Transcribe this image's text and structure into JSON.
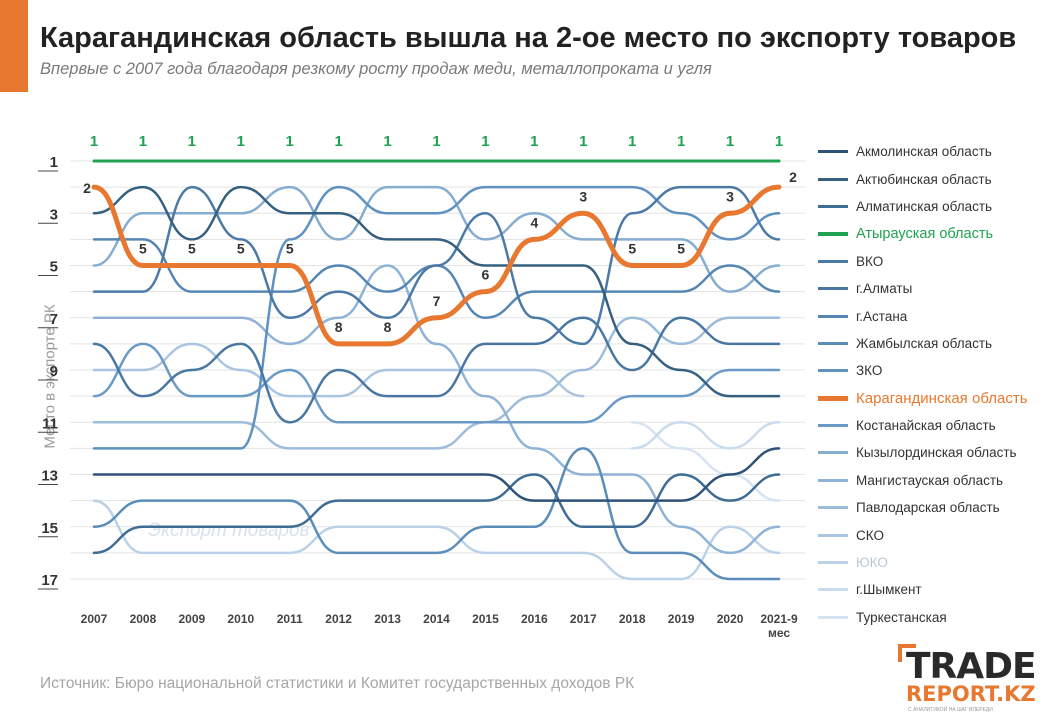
{
  "header": {
    "title": "Карагандинская область вышла на 2-ое место по экспорту товаров",
    "subtitle": "Впервые с 2007 года благодаря резкому росту продаж меди, металлопроката и угля"
  },
  "source": "Источник: Бюро национальной статистики и Комитет государственных доходов РК",
  "logo": {
    "line1": "TRADE",
    "line2": "REPORT.KZ",
    "tagline": "С АНАЛИТИКОЙ НА ШАГ ВПЕРЕДИ"
  },
  "chart_data": {
    "type": "line",
    "title": "Карагандинская область вышла на 2-ое место по экспорту товаров",
    "subtitle": "Впервые с 2007 года благодаря резкому росту продаж меди, металлопроката и угля",
    "xlabel": "",
    "ylabel": "Место в экспорте РК",
    "x": [
      "2007",
      "2008",
      "2009",
      "2010",
      "2011",
      "2012",
      "2013",
      "2014",
      "2015",
      "2016",
      "2017",
      "2018",
      "2019",
      "2020",
      "2021-9 мес"
    ],
    "y_ticks": [
      1,
      3,
      5,
      7,
      9,
      11,
      13,
      15,
      17
    ],
    "ylim": [
      17,
      1
    ],
    "y_inverted": true,
    "grid": true,
    "legend_position": "right",
    "watermark": "Экспорт товаров",
    "series": [
      {
        "name": "Акмолинская область",
        "color": "#2e5277",
        "width": 2.5,
        "values": [
          13,
          13,
          13,
          13,
          13,
          13,
          13,
          13,
          13,
          14,
          14,
          14,
          14,
          13,
          12
        ]
      },
      {
        "name": "Актюбинская область",
        "color": "#36607f",
        "width": 2.5,
        "values": [
          3,
          2,
          4,
          2,
          3,
          3,
          4,
          4,
          5,
          5,
          5,
          8,
          9,
          10,
          10
        ]
      },
      {
        "name": "Алматинская область",
        "color": "#3f6c94",
        "width": 2.5,
        "values": [
          16,
          15,
          15,
          15,
          15,
          14,
          14,
          14,
          14,
          13,
          15,
          15,
          13,
          14,
          13
        ]
      },
      {
        "name": "Атырауская область",
        "color": "#1fa352",
        "width": 3,
        "values": [
          1,
          1,
          1,
          1,
          1,
          1,
          1,
          1,
          1,
          1,
          1,
          1,
          1,
          1,
          1
        ],
        "labels": [
          "1",
          "1",
          "1",
          "1",
          "1",
          "1",
          "1",
          "1",
          "1",
          "1",
          "1",
          "1",
          "1",
          "1",
          "1"
        ]
      },
      {
        "name": "ВКО",
        "color": "#4c7aa7",
        "width": 2.5,
        "values": [
          6,
          6,
          2,
          4,
          7,
          6,
          7,
          5,
          3,
          7,
          8,
          3,
          2,
          2,
          4
        ]
      },
      {
        "name": "г.Алматы",
        "color": "#4a77a2",
        "width": 2.5,
        "values": [
          8,
          10,
          9,
          8,
          11,
          9,
          10,
          10,
          8,
          8,
          7,
          9,
          7,
          8,
          8
        ]
      },
      {
        "name": "г.Астана",
        "color": "#5586b4",
        "width": 2.5,
        "values": [
          4,
          4,
          6,
          6,
          6,
          5,
          6,
          5,
          7,
          6,
          6,
          6,
          6,
          5,
          6
        ]
      },
      {
        "name": "Жамбылская область",
        "color": "#5b8dba",
        "width": 2.5,
        "values": [
          15,
          14,
          14,
          14,
          14,
          16,
          16,
          16,
          15,
          15,
          12,
          16,
          16,
          17,
          17
        ]
      },
      {
        "name": "ЗКО",
        "color": "#5e90c0",
        "width": 2.5,
        "values": [
          12,
          12,
          12,
          12,
          4,
          2,
          3,
          3,
          2,
          2,
          2,
          2,
          3,
          4,
          3
        ]
      },
      {
        "name": "Карагандинская область",
        "color": "#e8782f",
        "width": 5,
        "values": [
          2,
          5,
          5,
          5,
          5,
          8,
          8,
          7,
          6,
          4,
          3,
          5,
          5,
          3,
          2
        ],
        "labels": [
          "2",
          "5",
          "5",
          "5",
          "5",
          "8",
          "8",
          "7",
          "6",
          "4",
          "3",
          "5",
          "5",
          "3",
          "2"
        ]
      },
      {
        "name": "Костанайская область",
        "color": "#6b9ac7",
        "width": 2.5,
        "values": [
          10,
          8,
          10,
          10,
          9,
          11,
          11,
          11,
          11,
          11,
          11,
          10,
          10,
          9,
          9
        ]
      },
      {
        "name": "Кызылординская область",
        "color": "#86acd0",
        "width": 2.5,
        "values": [
          5,
          3,
          3,
          3,
          2,
          4,
          2,
          2,
          4,
          3,
          4,
          4,
          4,
          6,
          5
        ]
      },
      {
        "name": "Мангистауская область",
        "color": "#8fb3d6",
        "width": 2.5,
        "values": [
          7,
          7,
          7,
          7,
          8,
          7,
          5,
          8,
          10,
          12,
          13,
          13,
          15,
          16,
          15
        ]
      },
      {
        "name": "Павлодарская область",
        "color": "#9dbcdb",
        "width": 2.5,
        "values": [
          11,
          11,
          11,
          11,
          12,
          12,
          12,
          12,
          11,
          10,
          9,
          7,
          8,
          7,
          7
        ]
      },
      {
        "name": "СКО",
        "color": "#a9c5e1",
        "width": 2.5,
        "values": [
          9,
          9,
          8,
          9,
          10,
          10,
          9,
          9,
          9,
          9,
          10,
          null,
          null,
          null,
          null
        ]
      },
      {
        "name": "ЮКО",
        "color": "#bad1e8",
        "width": 2.5,
        "values": [
          14,
          16,
          16,
          16,
          16,
          15,
          15,
          15,
          16,
          16,
          16,
          17,
          17,
          15,
          16
        ]
      },
      {
        "name": "г.Шымкент",
        "color": "#c9dbee",
        "width": 2.5,
        "values": [
          null,
          null,
          null,
          null,
          null,
          null,
          null,
          null,
          null,
          null,
          null,
          12,
          11,
          12,
          11
        ]
      },
      {
        "name": "Туркестанская",
        "color": "#d5e3f2",
        "width": 2.5,
        "values": [
          null,
          null,
          null,
          null,
          null,
          null,
          null,
          null,
          null,
          null,
          null,
          11,
          12,
          13,
          14
        ]
      }
    ]
  }
}
